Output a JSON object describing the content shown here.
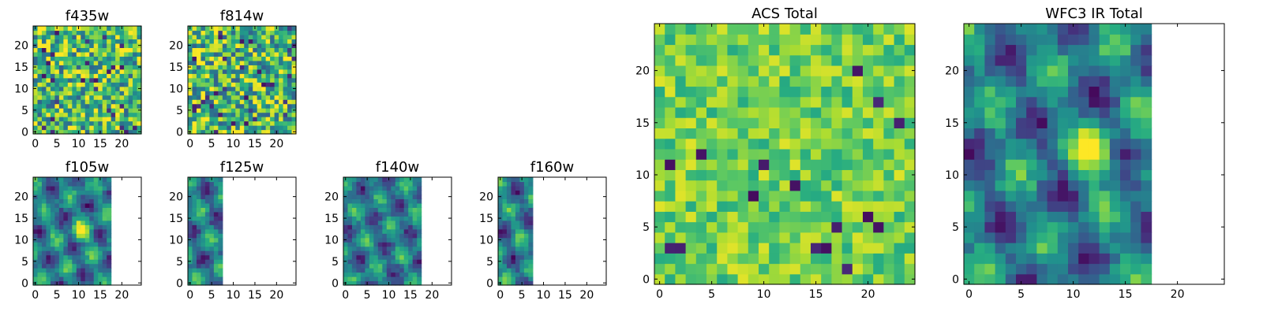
{
  "figure": {
    "background": "#ffffff",
    "colormap": "viridis"
  },
  "chart_data": [
    {
      "type": "heatmap",
      "title": "f435w",
      "grid_cols": 25,
      "grid_rows": 25,
      "valid_cols": 25,
      "xlim": [
        0,
        24
      ],
      "ylim": [
        0,
        24
      ],
      "xticks": [
        0,
        5,
        10,
        15,
        20
      ],
      "yticks": [
        0,
        5,
        10,
        15,
        20
      ],
      "cell_style": "fine-noise",
      "grid": false
    },
    {
      "type": "heatmap",
      "title": "f814w",
      "grid_cols": 25,
      "grid_rows": 25,
      "valid_cols": 25,
      "xlim": [
        0,
        24
      ],
      "ylim": [
        0,
        24
      ],
      "xticks": [
        0,
        5,
        10,
        15,
        20
      ],
      "yticks": [
        0,
        5,
        10,
        15,
        20
      ],
      "cell_style": "fine-noise",
      "grid": false
    },
    {
      "type": "heatmap",
      "title": "f105w",
      "grid_cols": 25,
      "grid_rows": 25,
      "valid_cols": 18,
      "xlim": [
        0,
        24
      ],
      "ylim": [
        0,
        24
      ],
      "xticks": [
        0,
        5,
        10,
        15,
        20
      ],
      "yticks": [
        0,
        5,
        10,
        15,
        20
      ],
      "cell_style": "smooth",
      "hotspot": [
        11,
        12
      ],
      "grid": false
    },
    {
      "type": "heatmap",
      "title": "f125w",
      "grid_cols": 25,
      "grid_rows": 25,
      "valid_cols": 8,
      "xlim": [
        0,
        24
      ],
      "ylim": [
        0,
        24
      ],
      "xticks": [
        0,
        5,
        10,
        15,
        20
      ],
      "yticks": [
        0,
        5,
        10,
        15,
        20
      ],
      "cell_style": "smooth",
      "grid": false
    },
    {
      "type": "heatmap",
      "title": "f140w",
      "grid_cols": 25,
      "grid_rows": 25,
      "valid_cols": 18,
      "xlim": [
        0,
        24
      ],
      "ylim": [
        0,
        24
      ],
      "xticks": [
        0,
        5,
        10,
        15,
        20
      ],
      "yticks": [
        0,
        5,
        10,
        15,
        20
      ],
      "cell_style": "smooth",
      "grid": false
    },
    {
      "type": "heatmap",
      "title": "f160w",
      "grid_cols": 25,
      "grid_rows": 25,
      "valid_cols": 8,
      "xlim": [
        0,
        24
      ],
      "ylim": [
        0,
        24
      ],
      "xticks": [
        0,
        5,
        10,
        15,
        20
      ],
      "yticks": [
        0,
        5,
        10,
        15,
        20
      ],
      "cell_style": "smooth",
      "grid": false
    },
    {
      "type": "heatmap",
      "title": "ACS Total",
      "grid_cols": 25,
      "grid_rows": 25,
      "valid_cols": 25,
      "xlim": [
        0,
        24
      ],
      "ylim": [
        0,
        24
      ],
      "xticks": [
        0,
        5,
        10,
        15,
        20
      ],
      "yticks": [
        0,
        5,
        10,
        15,
        20
      ],
      "cell_style": "bright-noise",
      "grid": false
    },
    {
      "type": "heatmap",
      "title": "WFC3 IR Total",
      "grid_cols": 25,
      "grid_rows": 25,
      "valid_cols": 18,
      "xlim": [
        0,
        24
      ],
      "ylim": [
        0,
        24
      ],
      "xticks": [
        0,
        5,
        10,
        15,
        20
      ],
      "yticks": [
        0,
        5,
        10,
        15,
        20
      ],
      "cell_style": "smooth",
      "hotspot": [
        12,
        12
      ],
      "grid": false
    }
  ]
}
